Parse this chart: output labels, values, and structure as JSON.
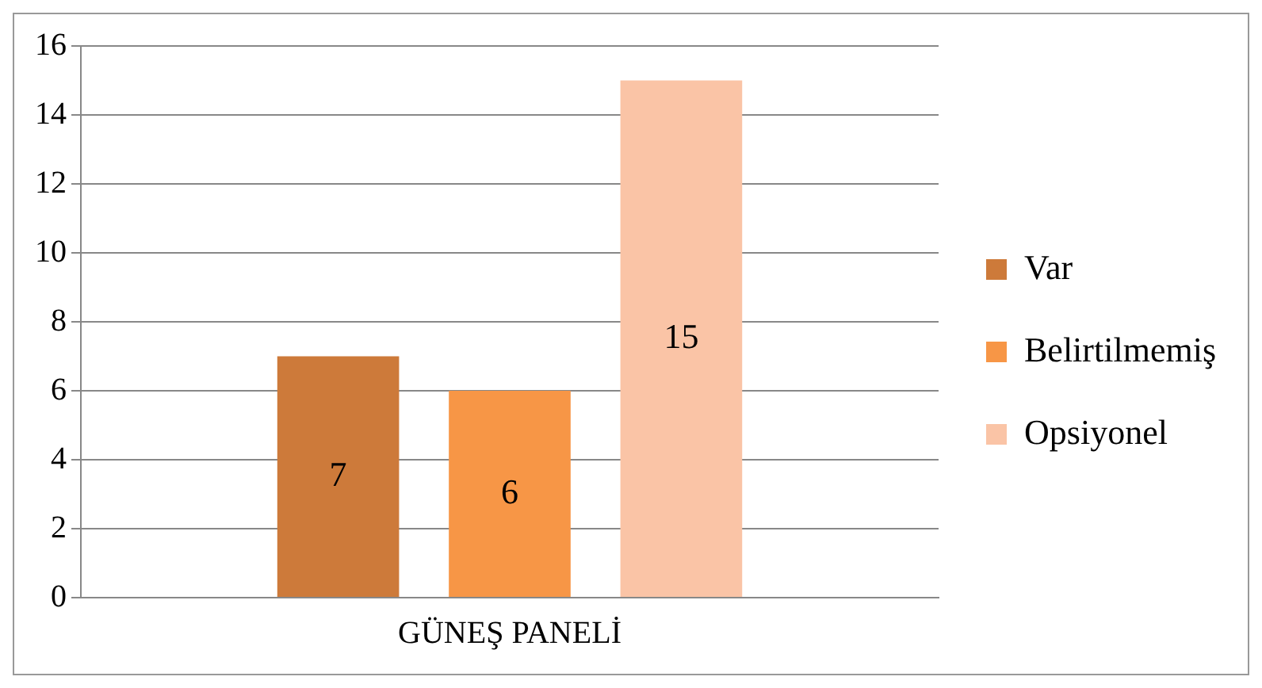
{
  "chart_data": {
    "type": "bar",
    "categories": [
      "GÜNEŞ PANELİ"
    ],
    "series": [
      {
        "name": "Var",
        "color": "#cd7a3a",
        "values": [
          7
        ]
      },
      {
        "name": "Belirtilmemiş",
        "color": "#f79646",
        "values": [
          6
        ]
      },
      {
        "name": "Opsiyonel",
        "color": "#fac4a6",
        "values": [
          15
        ]
      }
    ],
    "ylim": [
      0,
      16
    ],
    "yticks": [
      0,
      2,
      4,
      6,
      8,
      10,
      12,
      14,
      16
    ],
    "grid": "y",
    "legend": "right",
    "data_labels": true
  }
}
